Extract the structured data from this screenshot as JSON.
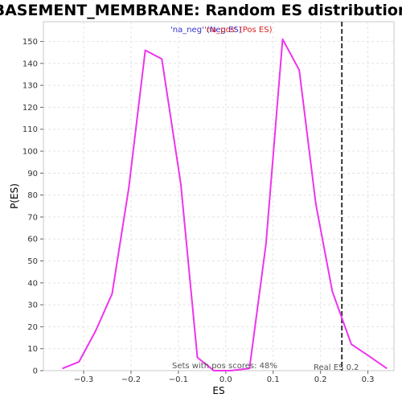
{
  "chart_data": {
    "type": "line",
    "title": "BASEMENT_MEMBRANE: Random ES distribution",
    "xlabel": "ES",
    "ylabel": "P(ES)",
    "xlim": [
      -0.385,
      0.355
    ],
    "ylim": [
      0,
      159
    ],
    "x_ticks": [
      -0.3,
      -0.2,
      -0.1,
      0.0,
      0.1,
      0.2,
      0.3
    ],
    "x_tick_labels": [
      "−0.3",
      "−0.2",
      "−0.1",
      "0.0",
      "0.1",
      "0.2",
      "0.3"
    ],
    "y_ticks": [
      0,
      10,
      20,
      30,
      40,
      50,
      60,
      70,
      80,
      90,
      100,
      110,
      120,
      130,
      140,
      150
    ],
    "grid": true,
    "series": [
      {
        "name": "",
        "color": "#ee33ee",
        "x": [
          -0.345,
          -0.31,
          -0.275,
          -0.24,
          -0.205,
          -0.17,
          -0.135,
          -0.095,
          -0.06,
          -0.025,
          0.01,
          0.05,
          0.085,
          0.12,
          0.155,
          0.19,
          0.225,
          0.265,
          0.3,
          0.34
        ],
        "y": [
          1,
          4,
          18,
          35,
          83,
          146,
          142,
          85,
          6,
          0,
          0,
          1,
          58,
          151,
          137,
          76,
          36,
          12,
          7,
          1
        ]
      }
    ],
    "real_es": 0.245,
    "legend": {
      "neg_text": "'na_neg' (Neg ES)",
      "pos_text": "'na_pos' (Pos ES)",
      "position": "top-center"
    },
    "annotations": {
      "pos_scores": "Sets with pos scores: 48%",
      "real_es_label": "Real ES 0.2"
    }
  }
}
